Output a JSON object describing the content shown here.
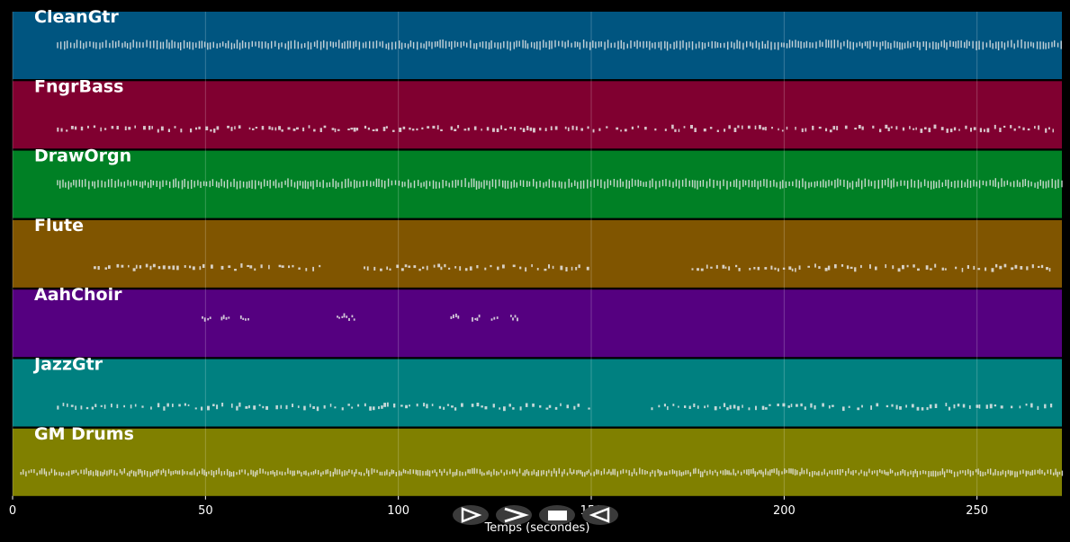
{
  "chart_data": {
    "type": "piano-roll",
    "xlabel": "Temps (secondes)",
    "xlim": [
      0,
      272
    ],
    "x_ticks": [
      0,
      50,
      100,
      150,
      200,
      250
    ],
    "grid": true,
    "tracks": [
      {
        "name": "CleanGtr",
        "color": "#005580",
        "segments": [
          [
            11.5,
            272
          ]
        ],
        "pattern": "dense-even"
      },
      {
        "name": "FngrBass",
        "color": "#800030",
        "segments": [
          [
            11.5,
            270
          ]
        ],
        "pattern": "sparse-groups"
      },
      {
        "name": "DrawOrgn",
        "color": "#008025",
        "segments": [
          [
            11.5,
            272
          ]
        ],
        "pattern": "dense-even"
      },
      {
        "name": "Flute",
        "color": "#805500",
        "segments": [
          [
            21,
            80
          ],
          [
            91,
            150
          ],
          [
            176,
            270
          ]
        ],
        "pattern": "sparse-groups"
      },
      {
        "name": "AahChoir",
        "color": "#550080",
        "segments": [
          [
            49,
            51.5
          ],
          [
            54,
            56
          ],
          [
            59,
            61
          ],
          [
            84,
            89
          ],
          [
            113.5,
            115.5
          ],
          [
            119,
            121
          ],
          [
            124,
            126
          ],
          [
            129,
            131
          ]
        ],
        "pattern": "clusters"
      },
      {
        "name": "JazzGtr",
        "color": "#008080",
        "segments": [
          [
            11.5,
            150
          ],
          [
            165.5,
            270
          ]
        ],
        "pattern": "sparse-groups"
      },
      {
        "name": "GM Drums",
        "color": "#808000",
        "segments": [
          [
            2,
            272
          ]
        ],
        "pattern": "drums"
      }
    ]
  },
  "controls": [
    {
      "name": "play-button",
      "glyph": "play-icon"
    },
    {
      "name": "forward-button",
      "glyph": "forward-icon"
    },
    {
      "name": "stop-button",
      "glyph": "stop-icon"
    },
    {
      "name": "rewind-button",
      "glyph": "rewind-icon"
    }
  ]
}
